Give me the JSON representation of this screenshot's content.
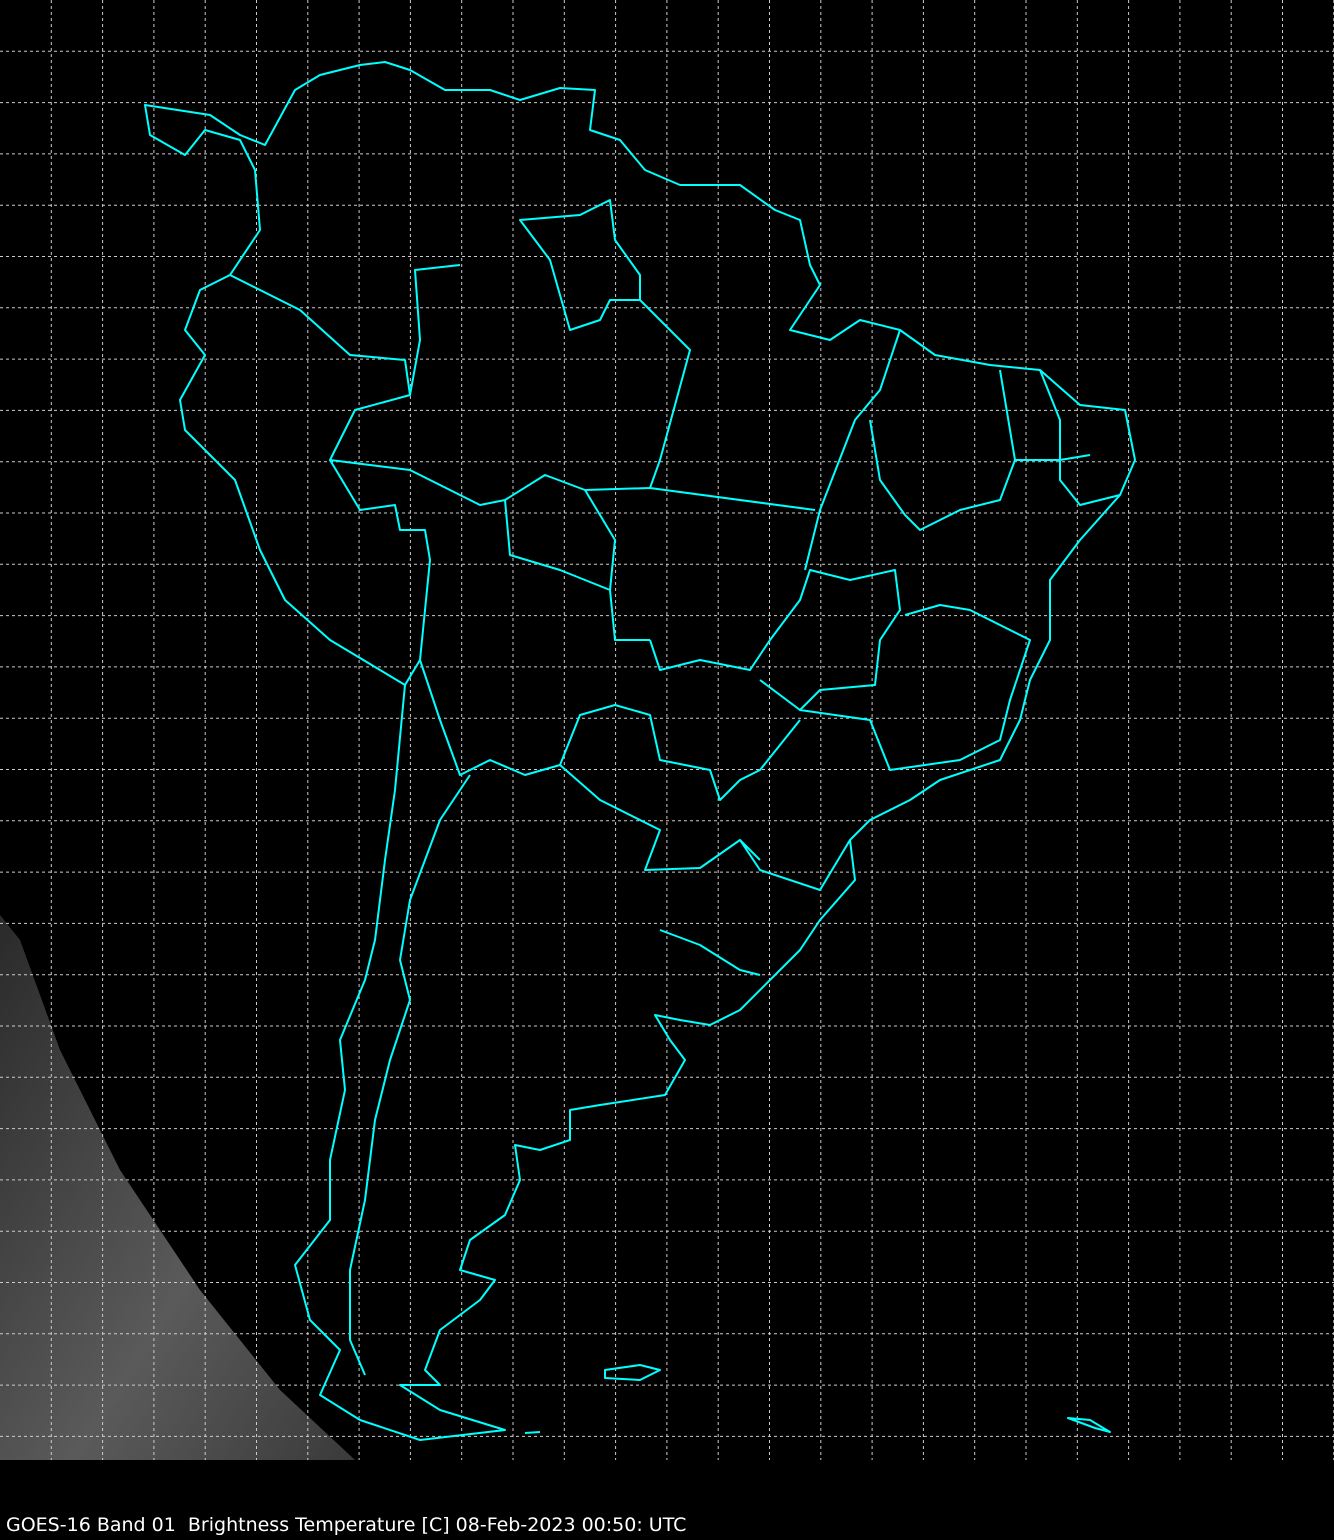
{
  "caption": "GOES-16 Band 01  Brightness Temperature [C] 08-Feb-2023 00:50: UTC",
  "map": {
    "region": "South America",
    "coastline_color": "#00ffff",
    "grid_color": "#cccccc",
    "grid_style": "dashed",
    "background_color": "#000000",
    "imagery": "grayscale satellite imagery, visible only in lower-left corner"
  }
}
